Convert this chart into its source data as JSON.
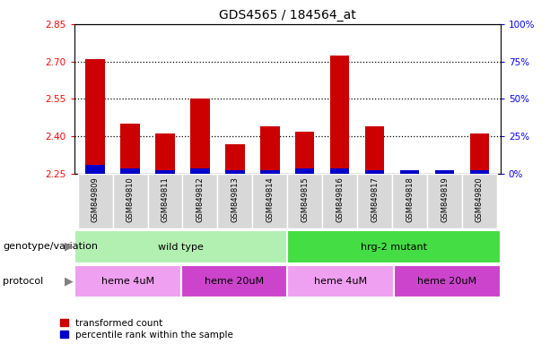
{
  "title": "GDS4565 / 184564_at",
  "samples": [
    "GSM849809",
    "GSM849810",
    "GSM849811",
    "GSM849812",
    "GSM849813",
    "GSM849814",
    "GSM849815",
    "GSM849816",
    "GSM849817",
    "GSM849818",
    "GSM849819",
    "GSM849820"
  ],
  "red_values": [
    2.71,
    2.45,
    2.41,
    2.55,
    2.37,
    2.44,
    2.42,
    2.725,
    2.44,
    2.255,
    2.255,
    2.41
  ],
  "blue_values": [
    2.285,
    2.272,
    2.265,
    2.272,
    2.265,
    2.265,
    2.272,
    2.272,
    2.265,
    2.265,
    2.265,
    2.265
  ],
  "baseline": 2.25,
  "ylim": [
    2.25,
    2.85
  ],
  "yticks_left": [
    2.25,
    2.4,
    2.55,
    2.7,
    2.85
  ],
  "yticks_right": [
    0,
    25,
    50,
    75,
    100
  ],
  "dotted_lines": [
    2.7,
    2.55,
    2.4
  ],
  "genotype_groups": [
    {
      "label": "wild type",
      "start": 0,
      "end": 6,
      "color": "#B2F0B2"
    },
    {
      "label": "hrg-2 mutant",
      "start": 6,
      "end": 12,
      "color": "#44DD44"
    }
  ],
  "protocol_groups": [
    {
      "label": "heme 4uM",
      "start": 0,
      "end": 3
    },
    {
      "label": "heme 20uM",
      "start": 3,
      "end": 6
    },
    {
      "label": "heme 4uM",
      "start": 6,
      "end": 9
    },
    {
      "label": "heme 20uM",
      "start": 9,
      "end": 12
    }
  ],
  "protocol_colors": [
    "#F0A0F0",
    "#CC44CC",
    "#F0A0F0",
    "#CC44CC"
  ],
  "bar_width": 0.55,
  "bar_color_red": "#CC0000",
  "bar_color_blue": "#0000CC",
  "xtick_bg": "#D8D8D8",
  "label_genotype": "genotype/variation",
  "label_protocol": "protocol",
  "legend_red": "transformed count",
  "legend_blue": "percentile rank within the sample"
}
